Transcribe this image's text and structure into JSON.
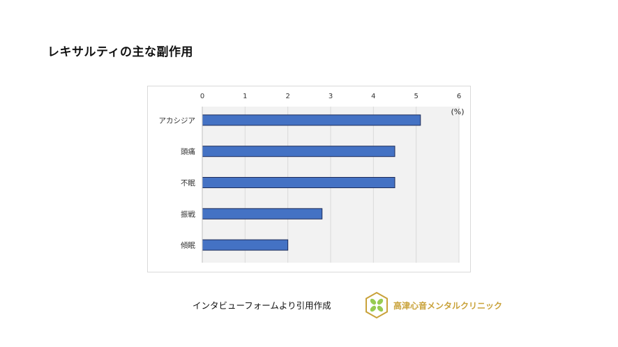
{
  "slide": {
    "title": "レキサルティの主な副作用",
    "source_note": "インタビューフォームより引用作成",
    "logo_text": "高津心音メンタルクリニック"
  },
  "colors": {
    "bar_fill": "#4472c4",
    "bar_stroke": "#1f2d5a",
    "plot_bg": "#f2f2f2",
    "grid": "#d9d9d9",
    "logo_gold": "#c9a23a",
    "logo_green": "#8dc63f"
  },
  "chart_data": {
    "type": "bar",
    "orientation": "horizontal",
    "categories": [
      "アカシジア",
      "頭痛",
      "不眠",
      "振戦",
      "傾眠"
    ],
    "values": [
      5.1,
      4.5,
      4.5,
      2.8,
      2.0
    ],
    "xlim": [
      0,
      6
    ],
    "xticks": [
      "0",
      "1",
      "2",
      "3",
      "4",
      "5",
      "6"
    ],
    "unit": "(%)",
    "x_axis_position": "top",
    "grid": true,
    "legend": "none"
  }
}
